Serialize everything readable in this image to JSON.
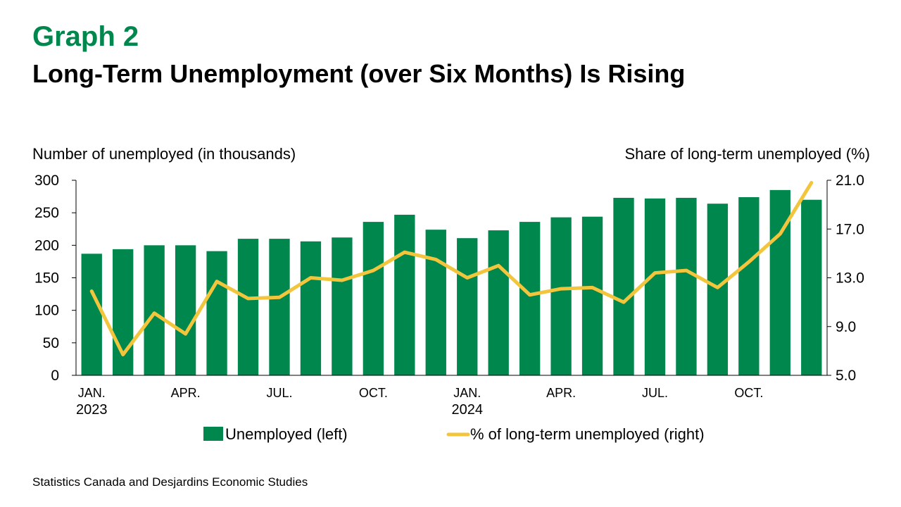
{
  "header": {
    "graph_label": "Graph 2",
    "title": "Long-Term Unemployment (over Six Months) Is Rising"
  },
  "footer": {
    "source": "Statistics Canada and Desjardins Economic Studies"
  },
  "colors": {
    "bar": "#00874E",
    "line": "#F2C53D",
    "brand": "#00874E"
  },
  "chart_data": {
    "type": "bar",
    "left_axis_label": "Number of unemployed (in thousands)",
    "right_axis_label": "Share of long-term unemployed (%)",
    "ylim_left": [
      0,
      300
    ],
    "yticks_left": [
      "0",
      "50",
      "100",
      "150",
      "200",
      "250",
      "300"
    ],
    "ylim_right": [
      5.0,
      21.0
    ],
    "yticks_right": [
      "5.0",
      "9.0",
      "13.0",
      "17.0",
      "21.0"
    ],
    "x_tick_labels": [
      {
        "index": 0,
        "label": "JAN.",
        "year": "2023"
      },
      {
        "index": 3,
        "label": "APR.",
        "year": ""
      },
      {
        "index": 6,
        "label": "JUL.",
        "year": ""
      },
      {
        "index": 9,
        "label": "OCT.",
        "year": ""
      },
      {
        "index": 12,
        "label": "JAN.",
        "year": "2024"
      },
      {
        "index": 15,
        "label": "APR.",
        "year": ""
      },
      {
        "index": 18,
        "label": "JUL.",
        "year": ""
      },
      {
        "index": 21,
        "label": "OCT.",
        "year": ""
      }
    ],
    "categories": [
      "2023-01",
      "2023-02",
      "2023-03",
      "2023-04",
      "2023-05",
      "2023-06",
      "2023-07",
      "2023-08",
      "2023-09",
      "2023-10",
      "2023-11",
      "2023-12",
      "2024-01",
      "2024-02",
      "2024-03",
      "2024-04",
      "2024-05",
      "2024-06",
      "2024-07",
      "2024-08",
      "2024-09",
      "2024-10",
      "2024-11",
      "2024-12"
    ],
    "grid": false,
    "legend_position": "bottom",
    "series": [
      {
        "name": "Unemployed (left)",
        "type": "bar",
        "axis": "left",
        "values": [
          187,
          194,
          200,
          200,
          191,
          210,
          210,
          206,
          212,
          236,
          247,
          224,
          211,
          223,
          236,
          243,
          244,
          273,
          272,
          273,
          264,
          274,
          285,
          270
        ]
      },
      {
        "name": "% of long-term unemployed (right)",
        "type": "line",
        "axis": "right",
        "values": [
          11.9,
          6.7,
          10.1,
          8.4,
          12.7,
          11.3,
          11.4,
          13.0,
          12.8,
          13.6,
          15.1,
          14.5,
          13.0,
          14.0,
          11.6,
          12.1,
          12.2,
          11.0,
          13.4,
          13.6,
          12.2,
          14.3,
          16.6,
          20.8
        ]
      }
    ]
  }
}
